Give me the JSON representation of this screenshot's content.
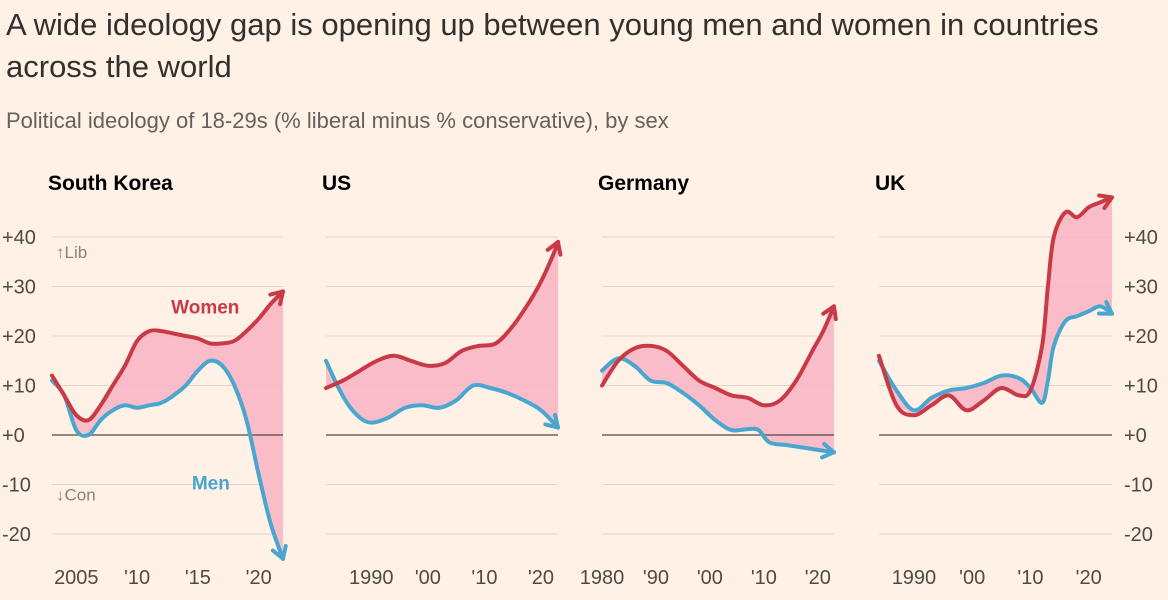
{
  "header": {
    "title": "A wide ideology gap is opening up between young men and women in countries across the world",
    "subtitle": "Political ideology of 18-29s (% liberal minus % conservative), by sex"
  },
  "colors": {
    "background": "#fff1e5",
    "women": "#c93a47",
    "men": "#49a7cf",
    "gap_fill": "#f9b3c3",
    "grid": "#e0d6cc",
    "zero_line": "#4f4a46",
    "axis_text": "#4f4a46",
    "annotation_text": "#8a837d"
  },
  "chart_data": [
    {
      "type": "line",
      "title": "South Korea",
      "xlim": [
        2003,
        2022
      ],
      "ylim": [
        -25,
        45
      ],
      "yticks": [
        40,
        30,
        20,
        10,
        0,
        -10,
        -20
      ],
      "ytick_labels": [
        "+40",
        "+30",
        "+20",
        "+10",
        "+0",
        "-10",
        "-20"
      ],
      "xticks": [
        2005,
        2010,
        2015,
        2020
      ],
      "xtick_labels": [
        "2005",
        "'10",
        "'15",
        "'20"
      ],
      "annotations": {
        "lib": "↑Lib",
        "con": "↓Con",
        "women": "Women",
        "men": "Men"
      },
      "series": [
        {
          "name": "Women",
          "x": [
            2003,
            2004,
            2005,
            2006,
            2007,
            2008,
            2009,
            2010,
            2011,
            2012,
            2013,
            2014,
            2015,
            2016,
            2017,
            2018,
            2019,
            2020,
            2021,
            2022
          ],
          "y": [
            12,
            8,
            4,
            3,
            6,
            10,
            14,
            19,
            21,
            21,
            20.5,
            20,
            19.5,
            18.5,
            18.5,
            19,
            21,
            23.5,
            26.5,
            29
          ]
        },
        {
          "name": "Men",
          "x": [
            2003,
            2004,
            2005,
            2006,
            2007,
            2008,
            2009,
            2010,
            2011,
            2012,
            2013,
            2014,
            2015,
            2016,
            2017,
            2018,
            2019,
            2020,
            2021,
            2022
          ],
          "y": [
            11,
            8,
            1,
            0,
            3,
            5,
            6,
            5.5,
            6,
            6.5,
            8,
            10,
            13,
            15,
            14,
            10,
            3,
            -8,
            -18,
            -25
          ]
        }
      ]
    },
    {
      "type": "line",
      "title": "US",
      "xlim": [
        1982,
        2023
      ],
      "ylim": [
        -25,
        45
      ],
      "yticks": [
        40,
        30,
        20,
        10,
        0,
        -10,
        -20
      ],
      "xticks": [
        1990,
        2000,
        2010,
        2020
      ],
      "xtick_labels": [
        "1990",
        "'00",
        "'10",
        "'20"
      ],
      "series": [
        {
          "name": "Women",
          "x": [
            1982,
            1985,
            1988,
            1991,
            1994,
            1997,
            2000,
            2003,
            2006,
            2009,
            2012,
            2015,
            2018,
            2020,
            2022,
            2023
          ],
          "y": [
            9.5,
            11,
            13,
            15,
            16,
            15,
            14,
            14.5,
            17,
            18,
            18.5,
            22,
            27,
            31,
            36,
            39
          ]
        },
        {
          "name": "Men",
          "x": [
            1982,
            1984,
            1986,
            1988,
            1990,
            1993,
            1996,
            1999,
            2002,
            2005,
            2008,
            2011,
            2014,
            2017,
            2020,
            2023
          ],
          "y": [
            15,
            10,
            6,
            3.5,
            2.5,
            3.5,
            5.5,
            6,
            5.5,
            7,
            10,
            9.5,
            8.5,
            7,
            5,
            1.5
          ]
        }
      ]
    },
    {
      "type": "line",
      "title": "Germany",
      "xlim": [
        1980,
        2023
      ],
      "ylim": [
        -25,
        45
      ],
      "yticks": [
        40,
        30,
        20,
        10,
        0,
        -10,
        -20
      ],
      "xticks": [
        1980,
        1990,
        2000,
        2010,
        2020
      ],
      "xtick_labels": [
        "1980",
        "'90",
        "'00",
        "'10",
        "'20"
      ],
      "series": [
        {
          "name": "Women",
          "x": [
            1980,
            1983,
            1986,
            1989,
            1992,
            1995,
            1998,
            2001,
            2004,
            2007,
            2010,
            2013,
            2016,
            2019,
            2021,
            2023
          ],
          "y": [
            10,
            15,
            17.5,
            18,
            17,
            14,
            11,
            9.5,
            8,
            7.5,
            6,
            7,
            11,
            17,
            21,
            26
          ]
        },
        {
          "name": "Men",
          "x": [
            1980,
            1983,
            1986,
            1989,
            1992,
            1995,
            1998,
            2001,
            2004,
            2007,
            2009,
            2011,
            2014,
            2017,
            2020,
            2023
          ],
          "y": [
            13,
            15.5,
            14,
            11,
            10.5,
            8.5,
            6,
            3,
            1,
            1.2,
            1,
            -1.5,
            -2,
            -2.5,
            -3,
            -3.5
          ]
        }
      ]
    },
    {
      "type": "line",
      "title": "UK",
      "xlim": [
        1984,
        2024
      ],
      "ylim": [
        -25,
        45
      ],
      "yticks": [
        40,
        30,
        20,
        10,
        0,
        -10,
        -20
      ],
      "ytick_labels": [
        "+40",
        "+30",
        "+20",
        "+10",
        "+0",
        "-10",
        "-20"
      ],
      "xticks": [
        1990,
        2000,
        2010,
        2020
      ],
      "xtick_labels": [
        "1990",
        "'00",
        "'10",
        "'20"
      ],
      "series": [
        {
          "name": "Women",
          "x": [
            1984,
            1987,
            1990,
            1993,
            1996,
            1999,
            2002,
            2005,
            2008,
            2010,
            2012,
            2013,
            2014,
            2016,
            2018,
            2020,
            2022,
            2024
          ],
          "y": [
            16,
            6,
            4,
            6,
            8,
            5,
            7,
            9.5,
            8,
            9,
            18,
            30,
            40,
            45,
            44,
            46,
            47,
            48
          ]
        },
        {
          "name": "Men",
          "x": [
            1984,
            1987,
            1990,
            1993,
            1996,
            1999,
            2002,
            2005,
            2008,
            2010,
            2012,
            2013,
            2014,
            2016,
            2018,
            2020,
            2022,
            2024
          ],
          "y": [
            15,
            9,
            5,
            7.5,
            9,
            9.5,
            10.5,
            12,
            11.5,
            9.5,
            6.5,
            11,
            18,
            23,
            24,
            25,
            26,
            24.5
          ]
        }
      ]
    }
  ]
}
